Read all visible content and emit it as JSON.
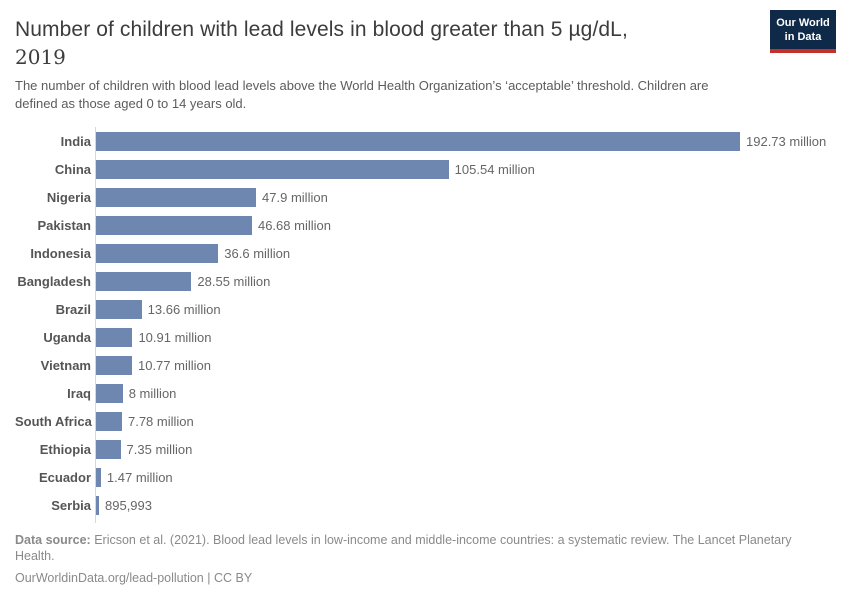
{
  "header": {
    "title_line1": "Number of children with lead levels in blood greater than 5 µg/dL,",
    "title_line2": "2019",
    "subtitle": "The number of children with blood lead levels above the World Health Organization’s ‘acceptable’ threshold. Children are defined as those aged 0 to 14 years old.",
    "logo": {
      "line1": "Our World",
      "line2": "in Data"
    }
  },
  "chart_data": {
    "type": "bar",
    "orientation": "horizontal",
    "title": "Number of children with lead levels in blood greater than 5 µg/dL, 2019",
    "unit": "million children",
    "xlim": [
      0,
      192.73
    ],
    "grid": false,
    "legend": "none",
    "categories": [
      "India",
      "China",
      "Nigeria",
      "Pakistan",
      "Indonesia",
      "Bangladesh",
      "Brazil",
      "Uganda",
      "Vietnam",
      "Iraq",
      "South Africa",
      "Ethiopia",
      "Ecuador",
      "Serbia"
    ],
    "values": [
      192.73,
      105.54,
      47.9,
      46.68,
      36.6,
      28.55,
      13.66,
      10.91,
      10.77,
      8,
      7.78,
      7.35,
      1.47,
      0.895993
    ],
    "value_labels": [
      "192.73 million",
      "105.54 million",
      "47.9 million",
      "46.68 million",
      "36.6 million",
      "28.55 million",
      "13.66 million",
      "10.91 million",
      "10.77 million",
      "8 million",
      "7.78 million",
      "7.35 million",
      "1.47 million",
      "895,993"
    ],
    "bar_color": "#6e87b1"
  },
  "footer": {
    "source_label": "Data source:",
    "source_text": " Ericson et al. (2021). Blood lead levels in low-income and middle-income countries: a systematic review. The Lancet Planetary Health.",
    "license_text": "OurWorldinData.org/lead-pollution | CC BY"
  },
  "colors": {
    "bar": "#6e87b1",
    "axis_line": "#d8d8d8",
    "title_text": "#3c3c3c",
    "subtitle_text": "#5c5c5c",
    "entity_label": "#555555",
    "value_label": "#666666",
    "footer_text": "#8a8a8a",
    "logo_background": "#0f2949",
    "logo_stripe": "#c2322b"
  }
}
